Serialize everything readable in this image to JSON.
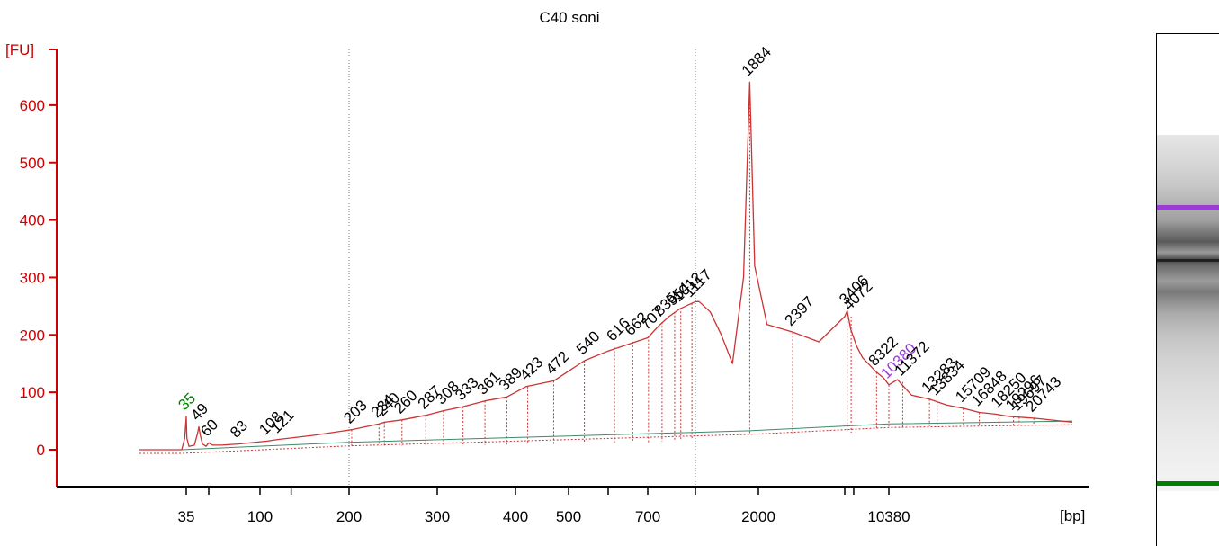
{
  "chart_data": {
    "type": "line",
    "title": "C40 soni",
    "ylabel": "[FU]",
    "xlabel": "[bp]",
    "ylim": [
      -60,
      700
    ],
    "y_ticks": [
      0,
      100,
      200,
      300,
      400,
      500,
      600
    ],
    "x_tick_labels": [
      "35",
      "100",
      "200",
      "300",
      "400",
      "500",
      "700",
      "2000",
      "10380"
    ],
    "x_tick_pos_bp": [
      35,
      100,
      200,
      300,
      400,
      500,
      700,
      2000,
      10380
    ],
    "x_minor_tick_pos_bp": [
      60,
      135,
      600,
      1150,
      3000,
      4500
    ],
    "x_reference_lines_bp": [
      200,
      1150
    ],
    "x_range_bp": [
      14,
      23500
    ],
    "colors": {
      "axis": "#cc0000",
      "trace": "#cc3333",
      "baseline": "#3d8a6a",
      "marker_green": "#008000",
      "marker_purple": "#9b3bd6",
      "text": "#000000"
    },
    "series": [
      {
        "x": [
          14,
          33,
          34.3,
          35,
          35.7,
          38,
          44,
          47.5,
          49,
          50.5,
          53,
          57,
          60,
          63,
          70,
          83,
          108,
          121,
          160,
          203,
          234,
          240,
          260,
          287,
          308,
          333,
          361,
          389,
          420,
          472,
          540,
          600,
          700,
          800,
          900,
          1000,
          1080,
          1150,
          1200,
          1350,
          1500,
          1650,
          1800,
          1884,
          1950,
          2100,
          2397,
          2700,
          3000,
          3400,
          4000,
          5000,
          6000,
          8322,
          9500,
          10380,
          11000,
          12000,
          13283,
          14500,
          15709,
          16848,
          18000,
          19000,
          20743,
          23500
        ],
        "y": [
          0,
          0,
          20,
          58,
          20,
          6,
          8,
          28,
          40,
          26,
          10,
          6,
          12,
          8,
          8,
          10,
          15,
          18,
          25,
          35,
          45,
          48,
          52,
          60,
          68,
          75,
          85,
          92,
          110,
          120,
          155,
          172,
          195,
          215,
          232,
          245,
          252,
          258,
          258,
          240,
          200,
          150,
          300,
          640,
          320,
          218,
          205,
          188,
          232,
          242,
          210,
          180,
          160,
          135,
          125,
          113,
          122,
          95,
          88,
          78,
          72,
          65,
          62,
          58,
          55,
          48
        ]
      }
    ],
    "baseline": {
      "x": [
        14,
        33,
        200,
        1884,
        10380,
        23500
      ],
      "y": [
        0,
        0,
        13,
        33,
        45,
        50
      ]
    },
    "peaks": [
      {
        "label": "35",
        "x": 35,
        "y": 58,
        "color": "green"
      },
      {
        "label": "49",
        "x": 49,
        "y": 40
      },
      {
        "label": "60",
        "x": 60,
        "y": 12
      },
      {
        "label": "83",
        "x": 83,
        "y": 10
      },
      {
        "label": "108",
        "x": 108,
        "y": 15
      },
      {
        "label": "121",
        "x": 121,
        "y": 18
      },
      {
        "label": "203",
        "x": 203,
        "y": 35
      },
      {
        "label": "234",
        "x": 234,
        "y": 45
      },
      {
        "label": "240",
        "x": 240,
        "y": 48
      },
      {
        "label": "260",
        "x": 260,
        "y": 52
      },
      {
        "label": "287",
        "x": 287,
        "y": 60
      },
      {
        "label": "308",
        "x": 308,
        "y": 68
      },
      {
        "label": "333",
        "x": 333,
        "y": 75
      },
      {
        "label": "361",
        "x": 361,
        "y": 85
      },
      {
        "label": "389",
        "x": 389,
        "y": 92
      },
      {
        "label": "423",
        "x": 423,
        "y": 110
      },
      {
        "label": "472",
        "x": 472,
        "y": 120
      },
      {
        "label": "540",
        "x": 540,
        "y": 155
      },
      {
        "label": "616",
        "x": 616,
        "y": 178
      },
      {
        "label": "662",
        "x": 662,
        "y": 188
      },
      {
        "label": "707",
        "x": 707,
        "y": 198
      },
      {
        "label": "835",
        "x": 835,
        "y": 222
      },
      {
        "label": "954",
        "x": 954,
        "y": 240
      },
      {
        "label": "1012",
        "x": 1012,
        "y": 247
      },
      {
        "label": "1117",
        "x": 1117,
        "y": 255
      },
      {
        "label": "1884",
        "x": 1884,
        "y": 640
      },
      {
        "label": "2397",
        "x": 2397,
        "y": 205
      },
      {
        "label": "3406",
        "x": 3406,
        "y": 242
      },
      {
        "label": "4072",
        "x": 4072,
        "y": 232
      },
      {
        "label": "8322",
        "x": 8322,
        "y": 135
      },
      {
        "label": "10380",
        "x": 10380,
        "y": 113,
        "color": "purple"
      },
      {
        "label": "11372",
        "x": 11372,
        "y": 118
      },
      {
        "label": "13283",
        "x": 13283,
        "y": 88
      },
      {
        "label": "13834",
        "x": 13834,
        "y": 84
      },
      {
        "label": "15709",
        "x": 15709,
        "y": 72
      },
      {
        "label": "16848",
        "x": 16848,
        "y": 65
      },
      {
        "label": "18250",
        "x": 18250,
        "y": 62
      },
      {
        "label": "19296",
        "x": 19296,
        "y": 58
      },
      {
        "label": "19697",
        "x": 19697,
        "y": 57
      },
      {
        "label": "20743",
        "x": 20743,
        "y": 55
      }
    ]
  },
  "gel": {
    "upper_marker_color": "#9b3bd6",
    "lower_marker_color": "#008000"
  }
}
